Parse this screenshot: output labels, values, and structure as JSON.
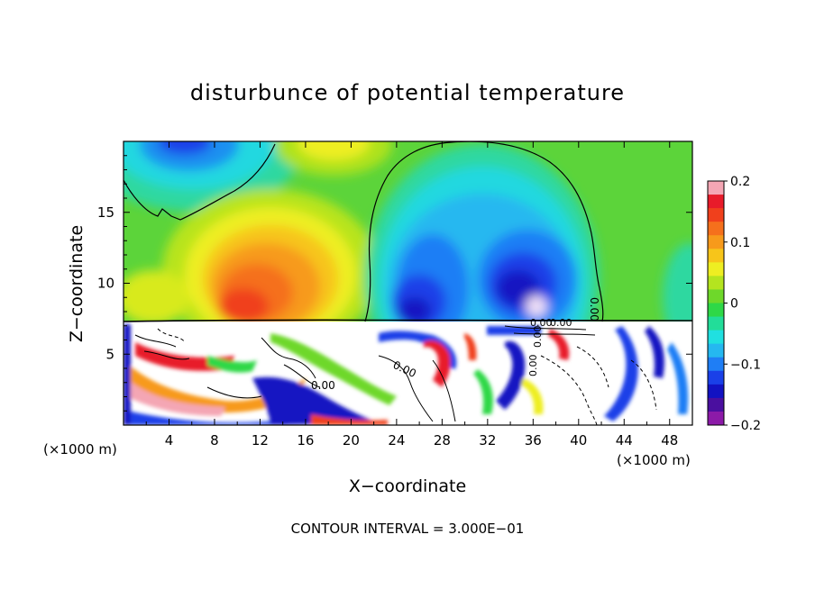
{
  "chart_data": {
    "type": "heatmap",
    "title": "disturbunce of potential temperature",
    "xlabel": "X−coordinate",
    "ylabel": "Z−coordinate",
    "x_unit_left": "(×1000 m)",
    "x_unit_right": "(×1000 m)",
    "xlim": [
      0,
      50
    ],
    "ylim": [
      0,
      20
    ],
    "x_ticks": [
      4,
      8,
      12,
      16,
      20,
      24,
      28,
      32,
      36,
      40,
      44,
      48
    ],
    "x_tick_labels": [
      "4",
      "8",
      "12",
      "16",
      "20",
      "24",
      "28",
      "32",
      "36",
      "40",
      "44",
      "48"
    ],
    "y_ticks": [
      5,
      10,
      15
    ],
    "y_tick_labels": [
      "5",
      "10",
      "15"
    ],
    "colorbar": {
      "min": -0.2,
      "max": 0.2,
      "ticks": [
        0.2,
        0.1,
        0,
        -0.1,
        -0.2
      ],
      "tick_labels": [
        "0.2",
        "0.1",
        "0",
        "−0.1",
        "−0.2"
      ],
      "colors": [
        "#f4a6b4",
        "#e81b2a",
        "#f0401c",
        "#f5701c",
        "#f79a1b",
        "#f7c51a",
        "#eeee22",
        "#b4e41f",
        "#6ed82a",
        "#2ed847",
        "#22dd99",
        "#20e0e0",
        "#25b8f0",
        "#1f7ef5",
        "#1a40e8",
        "#1212c2",
        "#4a0f9f",
        "#8c1aa8"
      ]
    },
    "contour_labels": [
      "0.00",
      "0.00",
      "0.00",
      "0.00",
      "0.00",
      "0.00",
      "0.00"
    ],
    "annotation": "CONTOUR INTERVAL = 3.000E−01"
  }
}
